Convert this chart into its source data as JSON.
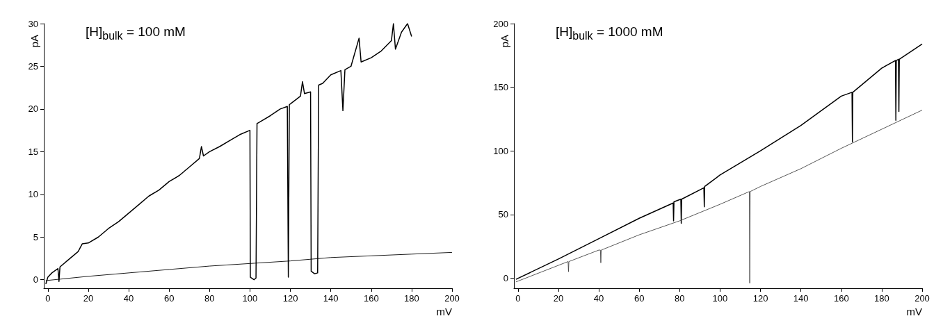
{
  "chart_data": [
    {
      "type": "line",
      "title": "[H]$_{bulk}$ = 100 mM",
      "xlabel": "mV",
      "ylabel": "pA",
      "xlim": [
        -2,
        200
      ],
      "ylim": [
        -1,
        30
      ],
      "xticks": [
        0,
        20,
        40,
        60,
        80,
        100,
        120,
        140,
        160,
        180,
        200
      ],
      "yticks": [
        0,
        5,
        10,
        15,
        20,
        25,
        30
      ],
      "grid": false,
      "marker": "none",
      "line_style": "solid",
      "series": [
        {
          "color": "#000000",
          "x": [
            -1,
            0,
            2,
            5,
            5.5,
            6,
            10,
            15,
            17,
            20,
            25,
            30,
            35,
            40,
            45,
            50,
            55,
            60,
            65,
            70,
            75,
            76,
            77,
            80,
            85,
            90,
            95,
            100,
            100.2,
            102,
            103,
            103.5,
            105,
            110,
            115,
            118.5,
            119,
            119.5,
            120,
            125,
            126,
            127,
            130,
            130.3,
            132,
            133.5,
            134,
            136,
            140,
            145,
            146,
            147,
            150,
            154,
            155,
            160,
            165,
            170,
            171,
            172,
            175,
            178,
            180
          ],
          "values": [
            -0.5,
            0.3,
            0.8,
            1.3,
            -0.2,
            1.5,
            2.3,
            3.3,
            4.2,
            4.3,
            5.0,
            6.0,
            6.8,
            7.8,
            8.8,
            9.8,
            10.5,
            11.5,
            12.2,
            13.2,
            14.2,
            15.6,
            14.5,
            15.0,
            15.6,
            16.3,
            17.0,
            17.5,
            0.3,
            0,
            0.2,
            18.3,
            18.5,
            19.2,
            20.0,
            20.3,
            0.3,
            20.5,
            20.6,
            21.5,
            23.2,
            21.8,
            22.0,
            1.0,
            0.7,
            0.8,
            22.8,
            23.0,
            24.0,
            24.5,
            19.8,
            24.6,
            25.0,
            28.3,
            25.5,
            26.0,
            26.8,
            28.0,
            30,
            27,
            29.0,
            30,
            28.5
          ]
        },
        {
          "color": "#000000",
          "x": [
            -1,
            20,
            40,
            60,
            80,
            100,
            120,
            140,
            160,
            180,
            200
          ],
          "values": [
            -0.1,
            0.4,
            0.8,
            1.2,
            1.6,
            1.9,
            2.2,
            2.6,
            2.8,
            3.0,
            3.2
          ]
        }
      ]
    },
    {
      "type": "line",
      "title": "[H]$_{bulk}$ = 1000 mM",
      "xlabel": "mV",
      "ylabel": "pA",
      "xlim": [
        -2,
        200
      ],
      "ylim": [
        -8,
        200
      ],
      "xticks": [
        0,
        20,
        40,
        60,
        80,
        100,
        120,
        140,
        160,
        180,
        200
      ],
      "yticks": [
        0,
        50,
        100,
        150,
        200
      ],
      "grid": false,
      "marker": "none",
      "line_style": "solid",
      "series": [
        {
          "color": "#000000",
          "x": [
            -1,
            20,
            40,
            60,
            76.8,
            77,
            77.2,
            80.6,
            80.8,
            81,
            92,
            92.2,
            92.4,
            100,
            120,
            140,
            160,
            165.3,
            165.5,
            165.7,
            180,
            186.8,
            187,
            187.2,
            188.3,
            188.5,
            188.7,
            200
          ],
          "values": [
            -1,
            15,
            31,
            47,
            59,
            45,
            60,
            62,
            43,
            62,
            71,
            56,
            72,
            81,
            100,
            120,
            143,
            146,
            107,
            146,
            165,
            171,
            124,
            171,
            172,
            131,
            172,
            184
          ]
        },
        {
          "color": "#444444",
          "x": [
            -1,
            20,
            24.8,
            25,
            25.2,
            40,
            40.8,
            41,
            41.2,
            60,
            80,
            100,
            114.5,
            114.7,
            114.9,
            120,
            140,
            160,
            180,
            200
          ],
          "values": [
            -3,
            10,
            13,
            5,
            13,
            22,
            22,
            12,
            22,
            34,
            45,
            58,
            68,
            -4,
            68,
            72,
            86,
            102,
            117,
            132
          ]
        }
      ]
    }
  ]
}
